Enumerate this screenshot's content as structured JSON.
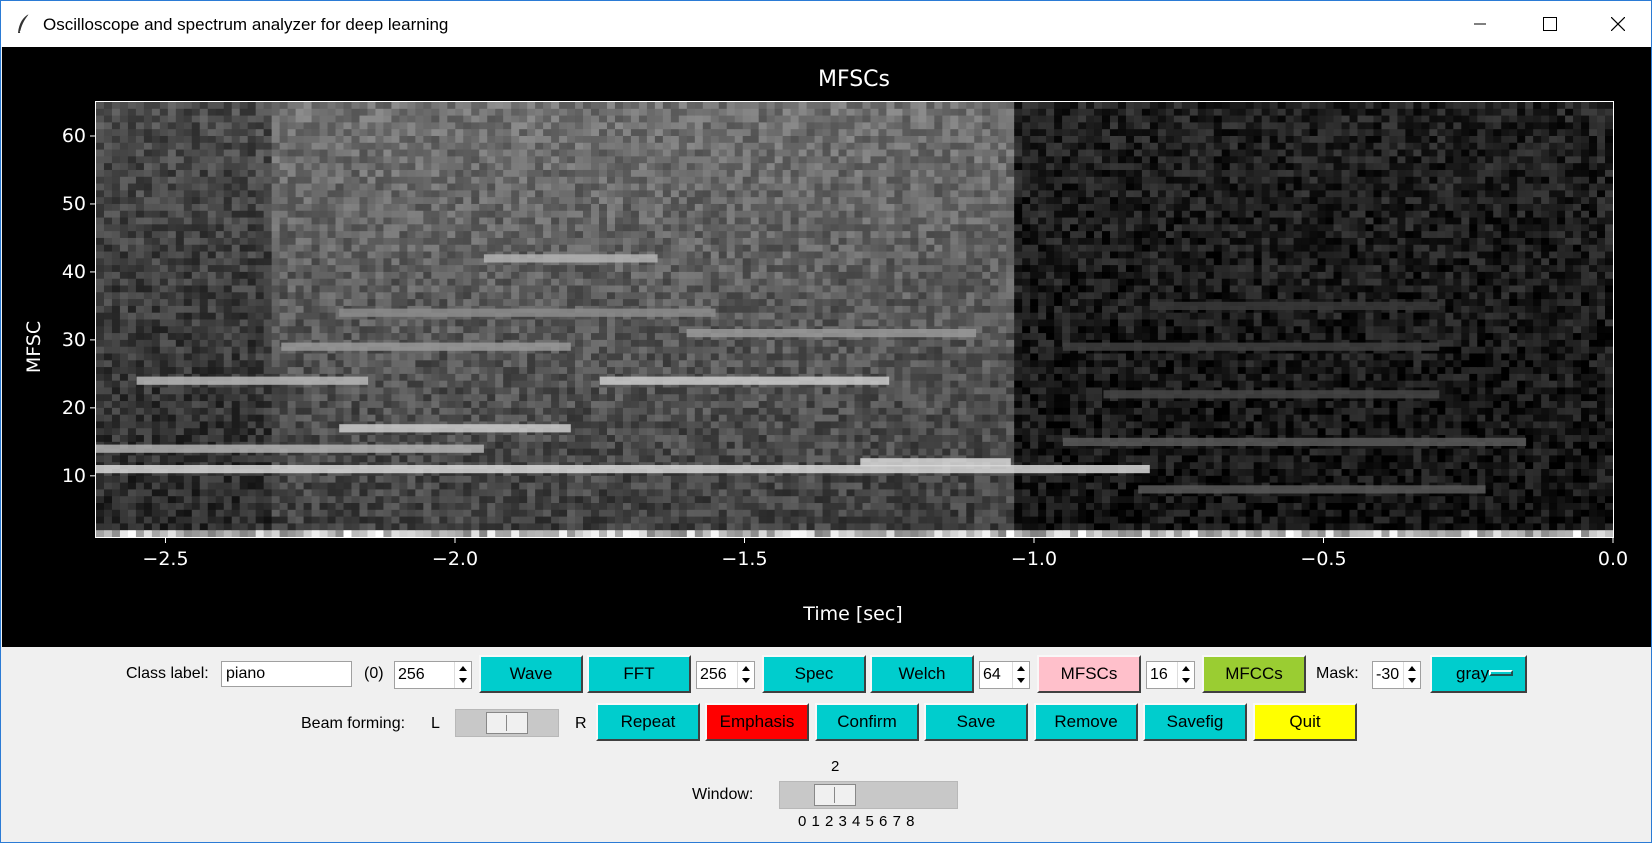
{
  "window": {
    "title": "Oscilloscope and spectrum analyzer for deep learning",
    "icons": [
      "feather-icon",
      "minimize-icon",
      "maximize-icon",
      "close-icon"
    ]
  },
  "chart_data": {
    "type": "heatmap",
    "title": "MFSCs",
    "xlabel": "Time [sec]",
    "ylabel": "MFSC",
    "xlim": [
      -2.62,
      0.0
    ],
    "ylim": [
      1,
      65
    ],
    "x_ticks": [
      "−2.5",
      "−2.0",
      "−1.5",
      "−1.0",
      "−0.5",
      "0.0"
    ],
    "x_tick_values": [
      -2.5,
      -2.0,
      -1.5,
      -1.0,
      -0.5,
      0.0
    ],
    "y_ticks": [
      "10",
      "20",
      "30",
      "40",
      "50",
      "60"
    ],
    "y_tick_values": [
      10,
      20,
      30,
      40,
      50,
      60
    ],
    "colormap": "gray",
    "grid": false,
    "regions": [
      {
        "start": -2.62,
        "end": -2.31,
        "level": 0.3
      },
      {
        "start": -2.31,
        "end": -1.04,
        "level": 0.45
      },
      {
        "start": -1.04,
        "end": 0.0,
        "level": 0.13
      }
    ],
    "bands": [
      {
        "start": -2.62,
        "end": -0.8,
        "mfsc": 11,
        "level": 0.85
      },
      {
        "start": -2.2,
        "end": -1.8,
        "mfsc": 17,
        "level": 0.8
      },
      {
        "start": -2.62,
        "end": -1.95,
        "mfsc": 14,
        "level": 0.7
      },
      {
        "start": -2.55,
        "end": -2.15,
        "mfsc": 24,
        "level": 0.72
      },
      {
        "start": -1.75,
        "end": -1.25,
        "mfsc": 24,
        "level": 0.8
      },
      {
        "start": -2.3,
        "end": -1.8,
        "mfsc": 29,
        "level": 0.6
      },
      {
        "start": -1.95,
        "end": -1.65,
        "mfsc": 42,
        "level": 0.7
      },
      {
        "start": -2.2,
        "end": -1.55,
        "mfsc": 34,
        "level": 0.55
      },
      {
        "start": -1.6,
        "end": -1.1,
        "mfsc": 31,
        "level": 0.6
      },
      {
        "start": -1.3,
        "end": -1.04,
        "mfsc": 12,
        "level": 0.85
      },
      {
        "start": -0.95,
        "end": -0.15,
        "mfsc": 15,
        "level": 0.35
      },
      {
        "start": -0.82,
        "end": -0.22,
        "mfsc": 8,
        "level": 0.35
      },
      {
        "start": -0.88,
        "end": -0.3,
        "mfsc": 22,
        "level": 0.28
      },
      {
        "start": -0.95,
        "end": -0.3,
        "mfsc": 29,
        "level": 0.25
      },
      {
        "start": -0.8,
        "end": -0.3,
        "mfsc": 35,
        "level": 0.22
      }
    ]
  },
  "controls": {
    "class_label": {
      "label": "Class label:",
      "value": "piano"
    },
    "class_index": "(0)",
    "buffer_spin": "256",
    "wave_button": "Wave",
    "fft_button": "FFT",
    "fft_spin": "256",
    "spec_button": "Spec",
    "welch_button": "Welch",
    "welch_spin": "64",
    "mfscs_button": "MFSCs",
    "mfsc_spin": "16",
    "mfccs_button": "MFCCs",
    "mask_label": "Mask:",
    "mask_spin": "-30",
    "colormap_menu": "gray",
    "beam_label": "Beam forming:",
    "beam_left": "L",
    "beam_right": "R",
    "beam_level": 0.5,
    "repeat_button": "Repeat",
    "emphasis_button": "Emphasis",
    "confirm_button": "Confirm",
    "save_button": "Save",
    "remove_button": "Remove",
    "savefig_button": "Savefig",
    "quit_button": "Quit",
    "window_label": "Window:",
    "window_value": "2",
    "window_ticks": "0 1 2 3 4 5 6 7 8",
    "colors": {
      "cyan": "#00cdcd",
      "pink": "#ffc0cb",
      "green": "#9acd32",
      "red": "#ff0000",
      "yellow": "#ffff00"
    }
  }
}
